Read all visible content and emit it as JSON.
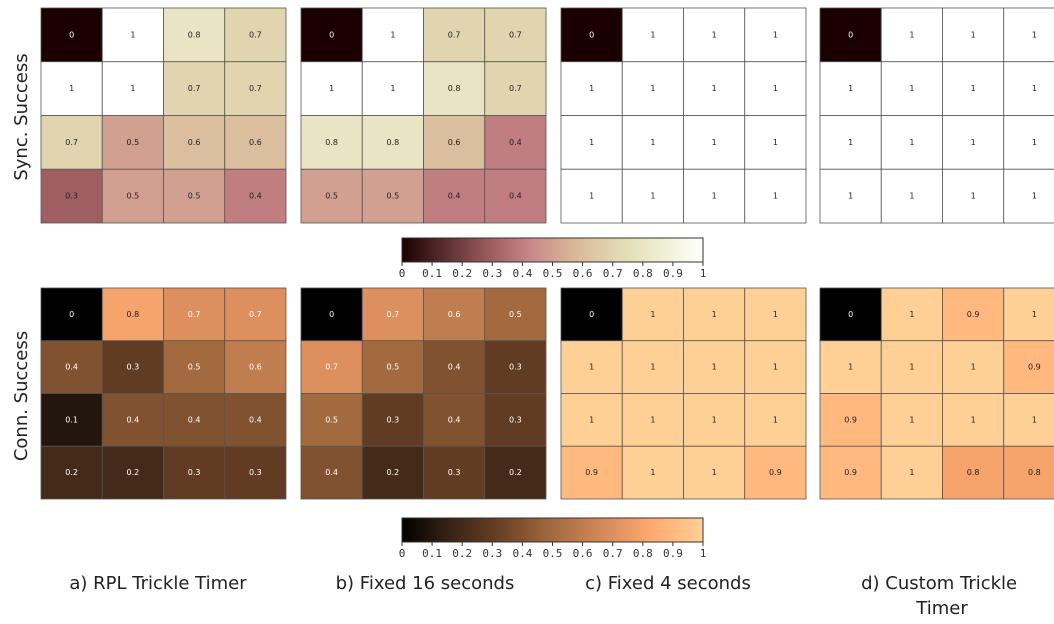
{
  "chart_data": {
    "type": "heatmap",
    "row_labels": [
      "Sync. Success",
      "Conn. Success"
    ],
    "column_labels": [
      "a) RPL Trickle Timer",
      "b) Fixed 16 seconds",
      "c) Fixed 4 seconds",
      "d) Custom Trickle Timer"
    ],
    "colorbar_ticks": [
      "0",
      "0.1",
      "0.2",
      "0.3",
      "0.4",
      "0.5",
      "0.6",
      "0.7",
      "0.8",
      "0.9",
      "1"
    ],
    "colorbar_range": [
      0,
      1
    ],
    "colormaps": {
      "sync": [
        "#1a0000",
        "#5a2e30",
        "#9a5a5c",
        "#c9878a",
        "#d8b898",
        "#e2d8b2",
        "#eeeed0",
        "#ffffff"
      ],
      "conn": [
        "#000000",
        "#3a2416",
        "#6b4226",
        "#a36a40",
        "#d4895a",
        "#ffaa70",
        "#ffd095"
      ]
    },
    "sync_success": [
      [
        [
          0,
          1,
          0.8,
          0.7
        ],
        [
          1,
          1,
          0.7,
          0.7
        ],
        [
          0.7,
          0.5,
          0.6,
          0.6
        ],
        [
          0.3,
          0.5,
          0.5,
          0.4
        ]
      ],
      [
        [
          0,
          1,
          0.7,
          0.7
        ],
        [
          1,
          1,
          0.8,
          0.7
        ],
        [
          0.8,
          0.8,
          0.6,
          0.4
        ],
        [
          0.5,
          0.5,
          0.4,
          0.4
        ]
      ],
      [
        [
          0,
          1,
          1,
          1
        ],
        [
          1,
          1,
          1,
          1
        ],
        [
          1,
          1,
          1,
          1
        ],
        [
          1,
          1,
          1,
          1
        ]
      ],
      [
        [
          0,
          1,
          1,
          1
        ],
        [
          1,
          1,
          1,
          1
        ],
        [
          1,
          1,
          1,
          1
        ],
        [
          1,
          1,
          1,
          1
        ]
      ]
    ],
    "conn_success": [
      [
        [
          0,
          0.8,
          0.7,
          0.7
        ],
        [
          0.4,
          0.3,
          0.5,
          0.6
        ],
        [
          0.1,
          0.4,
          0.4,
          0.4
        ],
        [
          0.2,
          0.2,
          0.3,
          0.3
        ]
      ],
      [
        [
          0,
          0.7,
          0.6,
          0.5
        ],
        [
          0.7,
          0.5,
          0.4,
          0.3
        ],
        [
          0.5,
          0.3,
          0.4,
          0.3
        ],
        [
          0.4,
          0.2,
          0.3,
          0.2
        ]
      ],
      [
        [
          0,
          1,
          1,
          1
        ],
        [
          1,
          1,
          1,
          1
        ],
        [
          1,
          1,
          1,
          1
        ],
        [
          0.9,
          1,
          1,
          0.9
        ]
      ],
      [
        [
          0,
          1,
          0.9,
          1
        ],
        [
          1,
          1,
          1,
          0.9
        ],
        [
          0.9,
          1,
          1,
          1
        ],
        [
          0.9,
          1,
          0.8,
          0.8
        ]
      ]
    ]
  }
}
